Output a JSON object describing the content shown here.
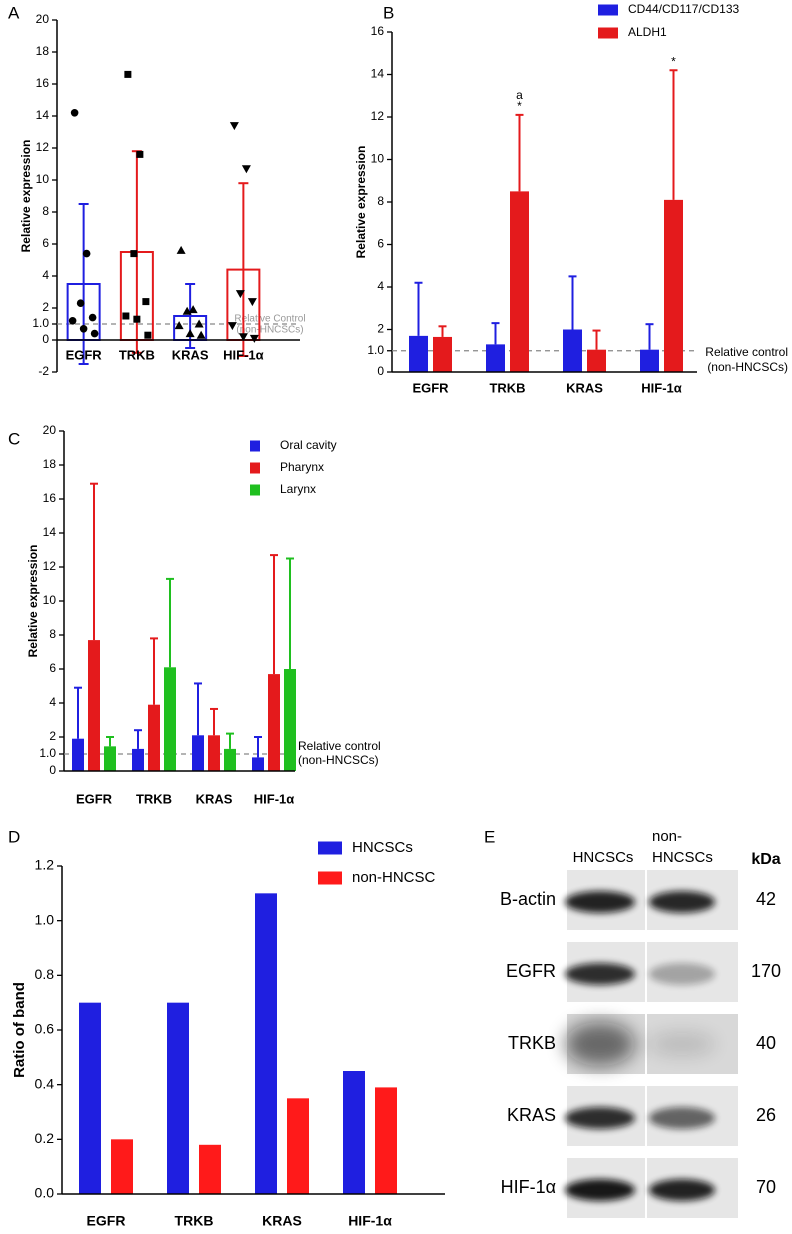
{
  "chart_data": [
    {
      "type": "bar",
      "panel": "A",
      "ylabel": "Relative expression",
      "categories": [
        "EGFR",
        "TRKB",
        "KRAS",
        "HIF-1α"
      ],
      "bar_style": "outline",
      "error_bars": "both",
      "markers": [
        "circle",
        "square",
        "triangle",
        "triangle-down"
      ],
      "series": [
        {
          "colors": [
            "#1f1fe0",
            "#e41a1c",
            "#1f1fe0",
            "#e41a1c"
          ],
          "values": [
            3.5,
            5.5,
            1.5,
            4.4
          ],
          "errors": [
            5,
            6.3,
            2,
            5.4
          ],
          "points": [
            [
              14.2,
              5.4,
              2.3,
              1.4,
              1.2,
              0.7,
              0.4
            ],
            [
              16.6,
              11.6,
              5.4,
              2.4,
              1.5,
              1.3,
              0.3
            ],
            [
              5.6,
              1.9,
              1.8,
              1.0,
              0.9,
              0.4,
              0.3
            ],
            [
              13.4,
              10.7,
              2.9,
              2.4,
              0.9,
              0.2,
              0.1
            ]
          ]
        }
      ],
      "ylim": [
        -2,
        20
      ],
      "yticks": [
        -2,
        0,
        {
          "value": 1,
          "label": "1.0"
        },
        2,
        4,
        6,
        8,
        10,
        12,
        14,
        16,
        18,
        20
      ],
      "reference_line": {
        "value": 1,
        "label": [
          "Relative Control",
          "(non-HNCSCs)"
        ]
      }
    },
    {
      "type": "bar",
      "panel": "B",
      "ylabel": "Relative expression",
      "categories": [
        "EGFR",
        "TRKB",
        "KRAS",
        "HIF-1α"
      ],
      "bar_style": "filled",
      "error_bars": "upper",
      "legend": "top-right",
      "series": [
        {
          "name": "CD44/CD117/CD133",
          "color": "#1f1fe0",
          "values": [
            1.7,
            1.3,
            2.0,
            1.05
          ],
          "errors": [
            2.5,
            1.0,
            2.5,
            1.2
          ]
        },
        {
          "name": "ALDH1",
          "color": "#e41a1c",
          "values": [
            1.65,
            8.5,
            1.05,
            8.1
          ],
          "errors": [
            0.5,
            3.6,
            0.9,
            6.1
          ]
        }
      ],
      "ylim": [
        0,
        16
      ],
      "yticks": [
        0,
        {
          "value": 1,
          "label": "1.0"
        },
        2,
        4,
        6,
        8,
        10,
        12,
        14,
        16
      ],
      "reference_line": {
        "value": 1,
        "label": [
          "Relative control",
          "(non-HNCSCs)"
        ]
      },
      "annotations": [
        {
          "category": "TRKB",
          "series": "ALDH1",
          "lines": [
            "a",
            "*"
          ]
        },
        {
          "category": "HIF-1α",
          "series": "ALDH1",
          "lines": [
            "*"
          ]
        }
      ]
    },
    {
      "type": "bar",
      "panel": "C",
      "ylabel": "Relative expression",
      "categories": [
        "EGFR",
        "TRKB",
        "KRAS",
        "HIF-1α"
      ],
      "bar_style": "filled",
      "error_bars": "upper",
      "legend": "top-right",
      "series": [
        {
          "name": "Oral cavity",
          "color": "#1f1fe0",
          "values": [
            1.9,
            1.3,
            2.1,
            0.8
          ],
          "errors": [
            3,
            1.1,
            3.05,
            1.2
          ]
        },
        {
          "name": "Pharynx",
          "color": "#e41a1c",
          "values": [
            7.7,
            3.9,
            2.1,
            5.7
          ],
          "errors": [
            9.2,
            3.9,
            1.55,
            7
          ]
        },
        {
          "name": "Larynx",
          "color": "#1fbf1f",
          "values": [
            1.45,
            6.1,
            1.3,
            6.0
          ],
          "errors": [
            0.55,
            5.2,
            0.9,
            6.5
          ]
        }
      ],
      "ylim": [
        0,
        20
      ],
      "yticks": [
        0,
        {
          "value": 1,
          "label": "1.0"
        },
        2,
        4,
        6,
        8,
        10,
        12,
        14,
        16,
        18,
        20
      ],
      "reference_line": {
        "value": 1,
        "label": [
          "Relative control",
          "(non-HNCSCs)"
        ]
      }
    },
    {
      "type": "bar",
      "panel": "D",
      "ylabel": "Ratio of band",
      "categories": [
        "EGFR",
        "TRKB",
        "KRAS",
        "HIF-1α"
      ],
      "bar_style": "filled",
      "legend": "top-right",
      "series": [
        {
          "name": "HNCSCs",
          "color": "#1f1fe0",
          "values": [
            0.7,
            0.7,
            1.1,
            0.45
          ]
        },
        {
          "name": "non-HNCSC",
          "color": "#ff1a1a",
          "values": [
            0.2,
            0.18,
            0.35,
            0.39
          ]
        }
      ],
      "ylim": [
        0,
        1.2
      ],
      "yticks": [
        {
          "value": 0,
          "label": "0.0"
        },
        {
          "value": 0.2,
          "label": "0.2"
        },
        {
          "value": 0.4,
          "label": "0.4"
        },
        {
          "value": 0.6,
          "label": "0.6"
        },
        {
          "value": 0.8,
          "label": "0.8"
        },
        {
          "value": 1.0,
          "label": "1.0"
        },
        {
          "value": 1.2,
          "label": "1.2"
        }
      ]
    }
  ],
  "blot": {
    "panel": "E",
    "columns": [
      [
        "HNCSCs"
      ],
      [
        "non-",
        "HNCSCs"
      ]
    ],
    "unit": "kDa",
    "rows": [
      {
        "name": "B-actin",
        "kda": 42
      },
      {
        "name": "EGFR",
        "kda": 170
      },
      {
        "name": "TRKB",
        "kda": 40
      },
      {
        "name": "KRAS",
        "kda": 26
      },
      {
        "name": "HIF-1α",
        "kda": 70
      }
    ]
  }
}
